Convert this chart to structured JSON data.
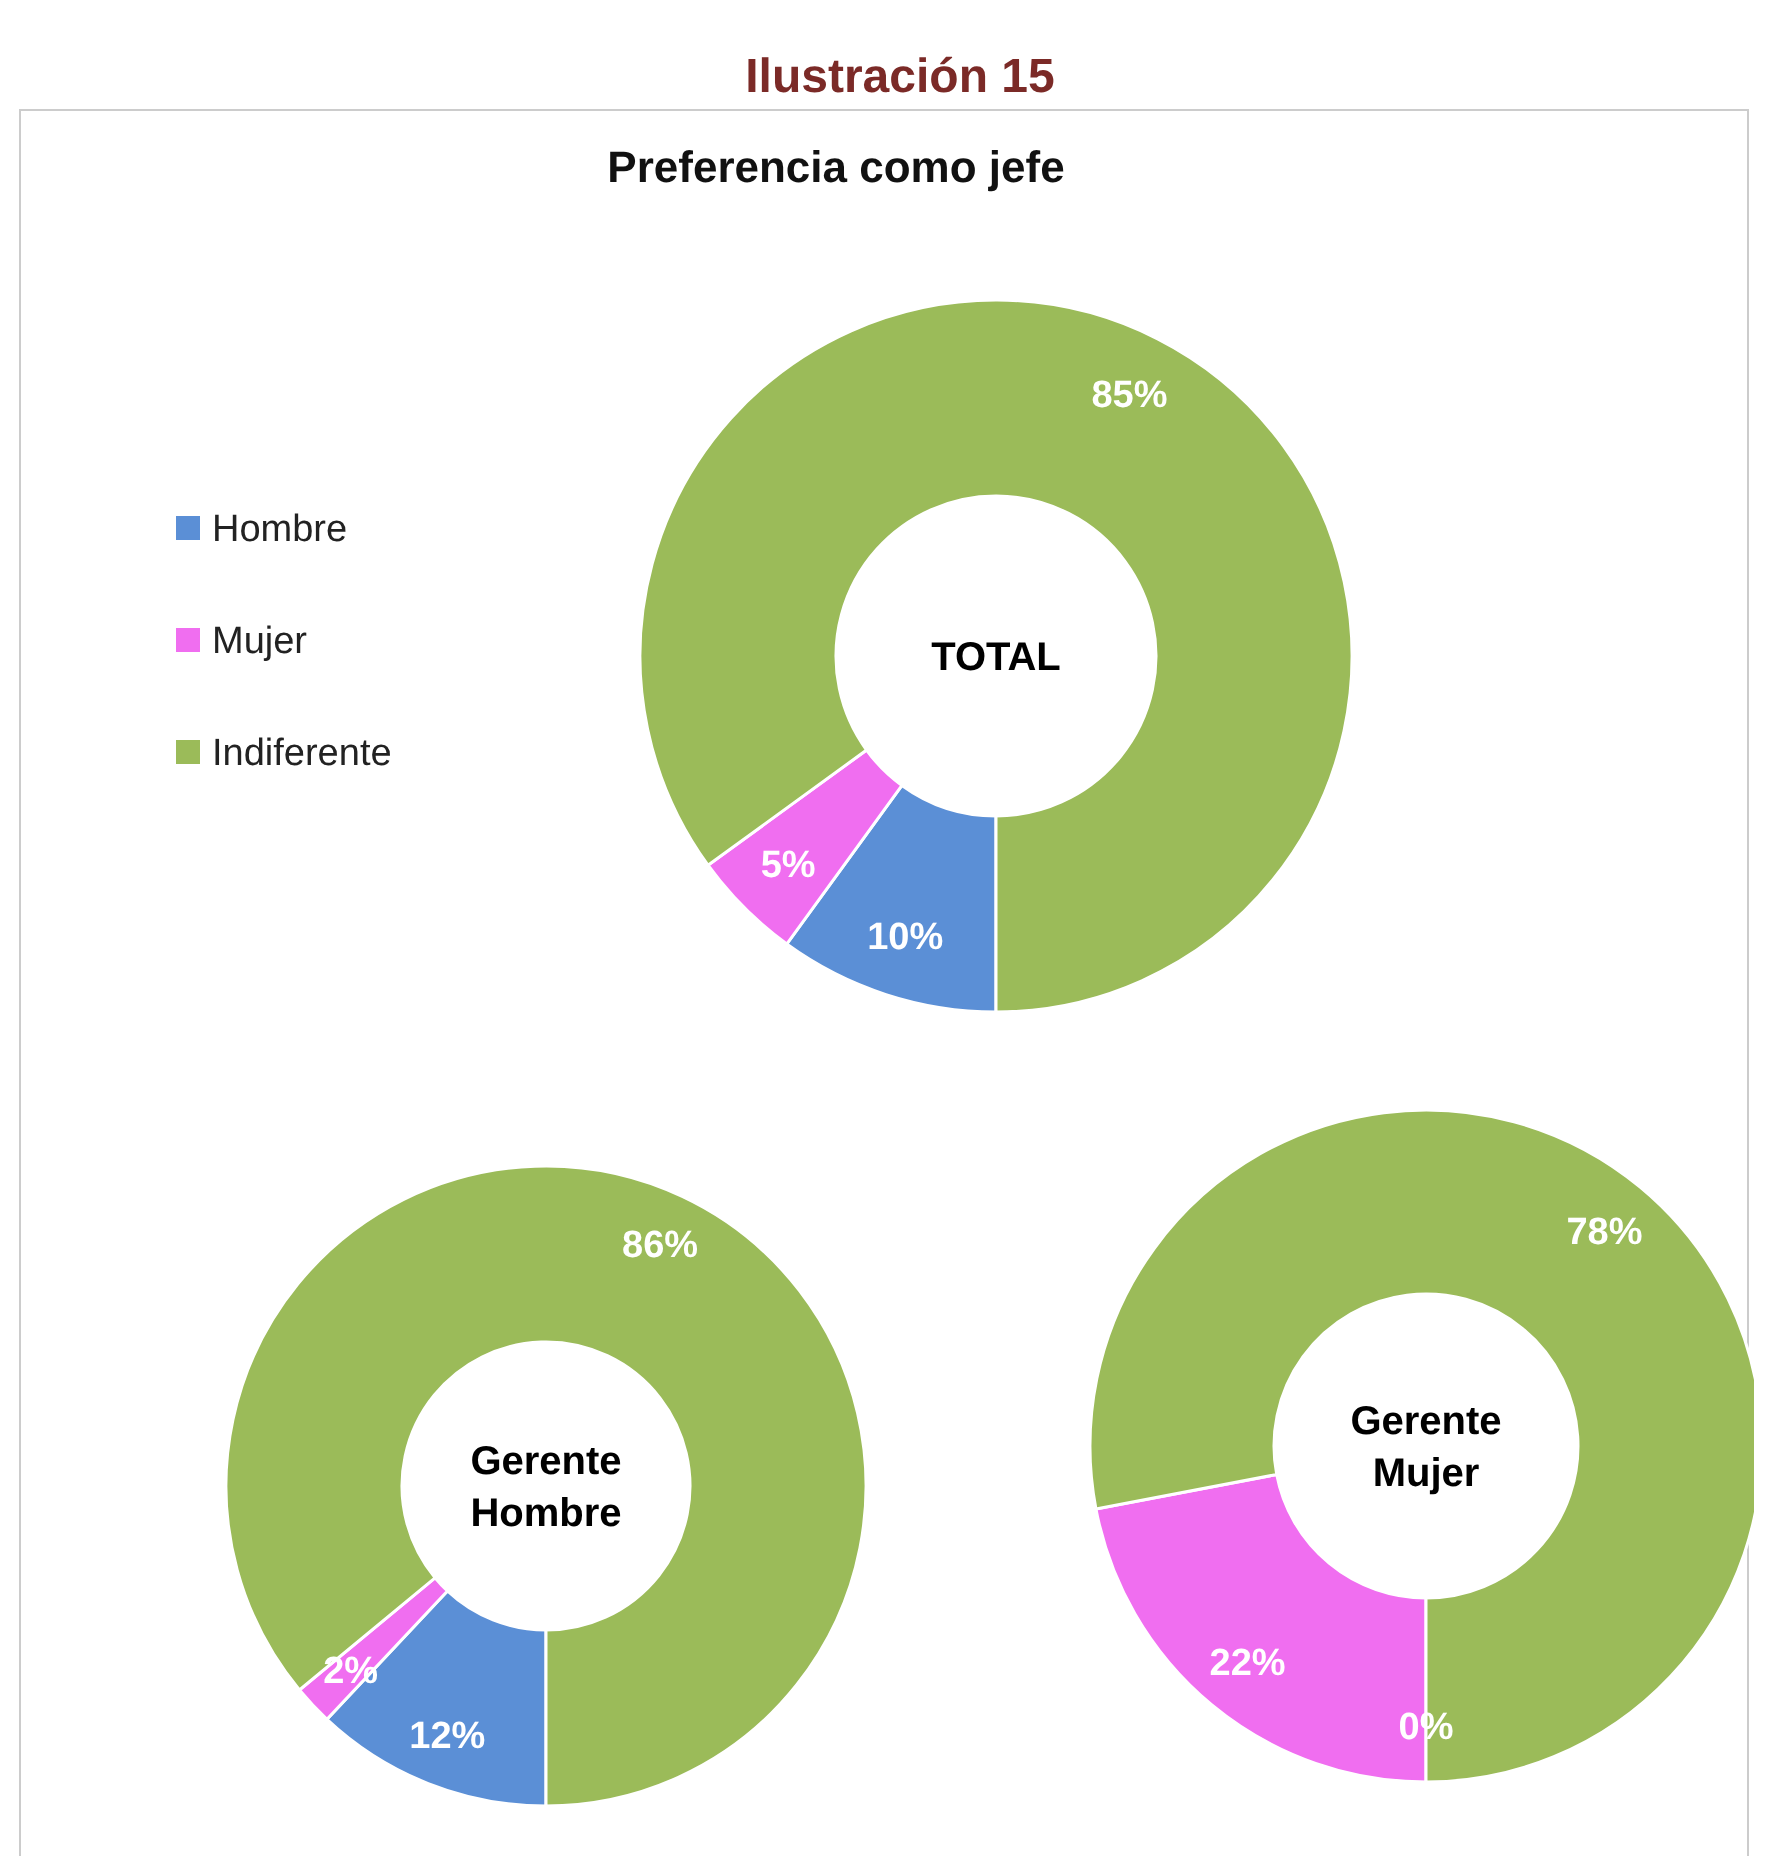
{
  "chart_data": [
    {
      "type": "donut",
      "title": "Ilustración 15",
      "subtitle": "Preferencia como jefe",
      "categories": [
        "Hombre",
        "Mujer",
        "Indiferente"
      ],
      "values": [
        10,
        5,
        85
      ],
      "value_labels": [
        "10%",
        "5%",
        "85%"
      ],
      "colors": [
        "#5b8fd6",
        "#f06ef0",
        "#9bbb59"
      ],
      "legend": "left",
      "annotations": [
        "TOTAL"
      ]
    },
    {
      "type": "donut",
      "categories": [
        null,
        null,
        null
      ],
      "values": [
        12,
        2,
        86
      ],
      "value_labels": [
        "12%",
        "2%",
        "86%"
      ],
      "colors": [
        "#5b8fd6",
        "#f06ef0",
        "#9bbb59"
      ],
      "annotations": [
        "Gerente Hombre"
      ]
    },
    {
      "type": "donut",
      "categories": [
        null,
        null,
        null
      ],
      "values": [
        0,
        22,
        78
      ],
      "value_labels": [
        "0%",
        "22%",
        "78%"
      ],
      "colors": [
        "#5b8fd6",
        "#f06ef0",
        "#9bbb59"
      ],
      "annotations": [
        "Gerente Mujer"
      ]
    }
  ]
}
